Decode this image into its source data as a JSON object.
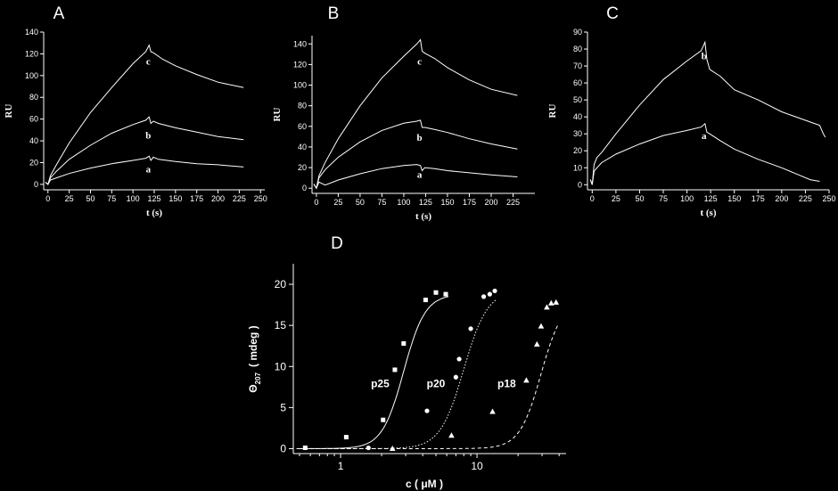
{
  "chart_data": [
    {
      "id": "A",
      "panel_label": "A",
      "type": "line",
      "xlabel": "t (s)",
      "ylabel": "RU",
      "xlim": [
        -5,
        255
      ],
      "ylim": [
        -5,
        140
      ],
      "xticks": [
        0,
        25,
        50,
        75,
        100,
        125,
        150,
        175,
        200,
        225,
        250
      ],
      "yticks": [
        0,
        20,
        40,
        60,
        80,
        100,
        120,
        140
      ],
      "grid": false,
      "series": [
        {
          "name": "a",
          "label_at": [
            118,
            11
          ],
          "points": [
            [
              -3,
              2
            ],
            [
              0,
              0
            ],
            [
              3,
              4
            ],
            [
              10,
              6
            ],
            [
              25,
              10
            ],
            [
              50,
              15
            ],
            [
              75,
              19
            ],
            [
              100,
              22
            ],
            [
              115,
              24
            ],
            [
              119,
              26
            ],
            [
              121,
              22
            ],
            [
              124,
              25
            ],
            [
              130,
              23
            ],
            [
              150,
              21
            ],
            [
              175,
              19
            ],
            [
              200,
              18
            ],
            [
              230,
              16
            ]
          ]
        },
        {
          "name": "b",
          "label_at": [
            118,
            42
          ],
          "points": [
            [
              -3,
              2
            ],
            [
              0,
              0
            ],
            [
              3,
              6
            ],
            [
              10,
              12
            ],
            [
              25,
              23
            ],
            [
              50,
              36
            ],
            [
              75,
              47
            ],
            [
              100,
              55
            ],
            [
              115,
              59
            ],
            [
              119,
              62
            ],
            [
              121,
              56
            ],
            [
              124,
              58
            ],
            [
              130,
              56
            ],
            [
              150,
              52
            ],
            [
              175,
              48
            ],
            [
              200,
              44
            ],
            [
              230,
              41
            ]
          ]
        },
        {
          "name": "c",
          "label_at": [
            118,
            110
          ],
          "points": [
            [
              -3,
              2
            ],
            [
              0,
              0
            ],
            [
              3,
              8
            ],
            [
              10,
              18
            ],
            [
              25,
              38
            ],
            [
              50,
              66
            ],
            [
              75,
              89
            ],
            [
              100,
              111
            ],
            [
              115,
              122
            ],
            [
              119,
              128
            ],
            [
              121,
              122
            ],
            [
              124,
              121
            ],
            [
              135,
              115
            ],
            [
              150,
              109
            ],
            [
              175,
              101
            ],
            [
              200,
              94
            ],
            [
              230,
              89
            ]
          ]
        }
      ]
    },
    {
      "id": "B",
      "panel_label": "B",
      "type": "line",
      "xlabel": "t (s)",
      "ylabel": "RU",
      "xlim": [
        -5,
        250
      ],
      "ylim": [
        -5,
        148
      ],
      "xticks": [
        0,
        25,
        50,
        75,
        100,
        125,
        150,
        175,
        200,
        225
      ],
      "yticks": [
        0,
        20,
        40,
        60,
        80,
        100,
        120,
        140
      ],
      "grid": false,
      "series": [
        {
          "name": "a",
          "label_at": [
            118,
            10
          ],
          "points": [
            [
              -3,
              4
            ],
            [
              0,
              0
            ],
            [
              3,
              6
            ],
            [
              10,
              3
            ],
            [
              25,
              8
            ],
            [
              50,
              14
            ],
            [
              75,
              19
            ],
            [
              100,
              22
            ],
            [
              115,
              23
            ],
            [
              119,
              22
            ],
            [
              121,
              17
            ],
            [
              124,
              20
            ],
            [
              135,
              19
            ],
            [
              150,
              17
            ],
            [
              175,
              15
            ],
            [
              200,
              13
            ],
            [
              230,
              11
            ]
          ]
        },
        {
          "name": "b",
          "label_at": [
            118,
            46
          ],
          "points": [
            [
              -3,
              4
            ],
            [
              0,
              0
            ],
            [
              3,
              10
            ],
            [
              10,
              18
            ],
            [
              25,
              30
            ],
            [
              50,
              45
            ],
            [
              75,
              56
            ],
            [
              100,
              63
            ],
            [
              115,
              65
            ],
            [
              119,
              66
            ],
            [
              121,
              59
            ],
            [
              124,
              59
            ],
            [
              135,
              57
            ],
            [
              150,
              54
            ],
            [
              175,
              48
            ],
            [
              200,
              43
            ],
            [
              230,
              38
            ]
          ]
        },
        {
          "name": "c",
          "label_at": [
            118,
            120
          ],
          "points": [
            [
              -3,
              4
            ],
            [
              0,
              0
            ],
            [
              3,
              12
            ],
            [
              10,
              25
            ],
            [
              25,
              48
            ],
            [
              50,
              80
            ],
            [
              75,
              107
            ],
            [
              100,
              128
            ],
            [
              115,
              140
            ],
            [
              119,
              144
            ],
            [
              121,
              133
            ],
            [
              124,
              131
            ],
            [
              135,
              126
            ],
            [
              150,
              117
            ],
            [
              175,
              105
            ],
            [
              200,
              96
            ],
            [
              230,
              90
            ]
          ]
        }
      ]
    },
    {
      "id": "C",
      "panel_label": "C",
      "type": "line",
      "xlabel": "t (s)",
      "ylabel": "RU",
      "xlim": [
        -5,
        250
      ],
      "ylim": [
        -3,
        90
      ],
      "xticks": [
        0,
        25,
        50,
        75,
        100,
        125,
        150,
        175,
        200,
        225,
        250
      ],
      "yticks": [
        0,
        10,
        20,
        30,
        40,
        50,
        60,
        70,
        80,
        90
      ],
      "grid": false,
      "series": [
        {
          "name": "a",
          "label_at": [
            118,
            27
          ],
          "points": [
            [
              -2,
              3
            ],
            [
              0,
              0
            ],
            [
              2,
              8
            ],
            [
              5,
              10
            ],
            [
              10,
              13
            ],
            [
              25,
              18
            ],
            [
              50,
              24
            ],
            [
              75,
              29
            ],
            [
              100,
              32
            ],
            [
              115,
              34
            ],
            [
              119,
              36
            ],
            [
              121,
              31
            ],
            [
              124,
              30
            ],
            [
              135,
              26
            ],
            [
              150,
              21
            ],
            [
              175,
              15
            ],
            [
              200,
              10
            ],
            [
              230,
              3
            ],
            [
              240,
              2
            ]
          ]
        },
        {
          "name": "b",
          "label_at": [
            118,
            74
          ],
          "points": [
            [
              -2,
              3
            ],
            [
              0,
              0
            ],
            [
              2,
              12
            ],
            [
              5,
              16
            ],
            [
              10,
              19
            ],
            [
              25,
              30
            ],
            [
              50,
              47
            ],
            [
              75,
              62
            ],
            [
              100,
              73
            ],
            [
              115,
              79
            ],
            [
              119,
              84
            ],
            [
              121,
              74
            ],
            [
              124,
              68
            ],
            [
              135,
              64
            ],
            [
              150,
              56
            ],
            [
              175,
              50
            ],
            [
              200,
              43
            ],
            [
              230,
              37
            ],
            [
              240,
              35
            ],
            [
              244,
              30
            ],
            [
              246,
              28
            ]
          ]
        }
      ]
    },
    {
      "id": "D",
      "panel_label": "D",
      "type": "scatter",
      "xlabel": "c ( μM )",
      "ylabel_prefix": "Θ",
      "ylabel_sub": "207",
      "ylabel_rest": "( mdeg )",
      "xscale": "log",
      "xlim": [
        0.45,
        45
      ],
      "ylim": [
        -0.6,
        22.5
      ],
      "xticks": [
        1,
        10
      ],
      "yticks": [
        0,
        5,
        10,
        15,
        20
      ],
      "grid": false,
      "series": [
        {
          "name": "p25",
          "marker": "square",
          "label_at": [
            1.95,
            7.5
          ],
          "curve": {
            "c50": 2.9,
            "hill": 5.5,
            "max": 18.8
          },
          "line": "solid",
          "points": [
            [
              0.55,
              0.1
            ],
            [
              1.1,
              1.4
            ],
            [
              2.05,
              3.5
            ],
            [
              2.5,
              9.6
            ],
            [
              2.9,
              12.8
            ],
            [
              4.2,
              18.1
            ],
            [
              5.0,
              19.0
            ],
            [
              5.9,
              18.8
            ]
          ]
        },
        {
          "name": "p20",
          "marker": "circle",
          "label_at": [
            5.0,
            7.5
          ],
          "curve": {
            "c50": 8.0,
            "hill": 5.0,
            "max": 19.3
          },
          "line": "dotted",
          "points": [
            [
              1.6,
              0.1
            ],
            [
              4.3,
              4.6
            ],
            [
              7.0,
              8.7
            ],
            [
              7.4,
              10.9
            ],
            [
              9.0,
              14.6
            ],
            [
              11.2,
              18.5
            ],
            [
              12.4,
              18.8
            ],
            [
              13.5,
              19.2
            ]
          ]
        },
        {
          "name": "p18",
          "marker": "triangle",
          "label_at": [
            16.5,
            7.5
          ],
          "curve": {
            "c50": 29.5,
            "hill": 5.5,
            "max": 18.2
          },
          "line": "dashed",
          "points": [
            [
              2.4,
              0.0
            ],
            [
              6.5,
              1.6
            ],
            [
              13.0,
              4.5
            ],
            [
              23.0,
              8.3
            ],
            [
              27.5,
              12.7
            ],
            [
              29.5,
              14.9
            ],
            [
              32.5,
              17.2
            ],
            [
              35.0,
              17.7
            ],
            [
              38.0,
              17.8
            ]
          ]
        }
      ]
    }
  ]
}
